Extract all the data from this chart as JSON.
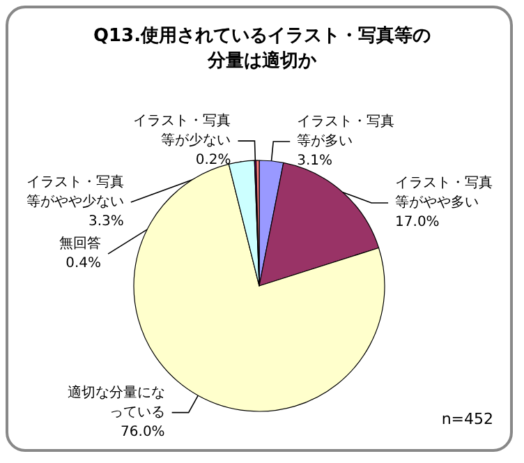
{
  "chart_data": {
    "type": "pie",
    "title": "Q13.使用されているイラスト・写真等の分量は適切か",
    "categories": [
      "イラスト・写真等が多い",
      "イラスト・写真等がやや多い",
      "適切な分量になっている",
      "イラスト・写真等がやや少ない",
      "イラスト・写真等が少ない",
      "無回答"
    ],
    "values": [
      3.1,
      17.0,
      76.0,
      3.3,
      0.2,
      0.4
    ],
    "value_labels": [
      "3.1%",
      "17.0%",
      "76.0%",
      "3.3%",
      "0.2%",
      "0.4%"
    ],
    "colors": [
      "#9999ff",
      "#993366",
      "#ffffcc",
      "#ccffff",
      "#660066",
      "#ff8080"
    ],
    "annotations": [
      "n=452"
    ],
    "legend": false
  }
}
